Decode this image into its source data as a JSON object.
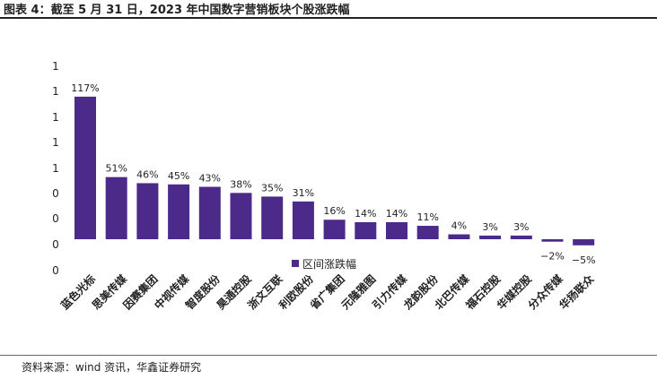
{
  "header": {
    "title": "图表 4：截至 5 月 31 日，2023 年中国数字营销板块个股涨跌幅"
  },
  "footer": {
    "source": "资料来源：wind 资讯，华鑫证券研究"
  },
  "chart_data": {
    "type": "bar",
    "title": "",
    "xlabel": "",
    "ylabel": "",
    "ytick_labels": [
      "0",
      "0",
      "0",
      "0",
      "1",
      "1",
      "1",
      "1",
      "1"
    ],
    "categories": [
      "蓝色光标",
      "思美传媒",
      "因赛集团",
      "中视传媒",
      "智度股份",
      "昊通控股",
      "浙文互联",
      "利欧股份",
      "省广集团",
      "元隆雅图",
      "引力传媒",
      "龙韵股份",
      "北巴传媒",
      "福石控股",
      "华媒控股",
      "分众传媒",
      "华扬联众"
    ],
    "series": [
      {
        "name": "区间涨跌幅",
        "values": [
          117,
          51,
          46,
          45,
          43,
          38,
          35,
          31,
          16,
          14,
          14,
          11,
          4,
          3,
          3,
          -2,
          -5
        ],
        "labels": [
          "117%",
          "51%",
          "46%",
          "45%",
          "43%",
          "38%",
          "35%",
          "31%",
          "16%",
          "14%",
          "14%",
          "11%",
          "4%",
          "3%",
          "3%",
          "−2%",
          "−5%"
        ]
      }
    ],
    "bar_color": "#4b2a8a",
    "legend_position": "bottom-center",
    "grid": false
  }
}
